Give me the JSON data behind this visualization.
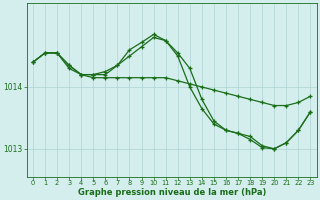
{
  "line1": {
    "x": [
      0,
      1,
      2,
      3,
      4,
      5,
      6,
      7,
      8,
      9,
      10,
      11,
      12,
      13,
      14,
      15,
      16,
      17,
      18,
      19,
      20,
      21,
      22,
      23
    ],
    "y": [
      1014.4,
      1014.55,
      1014.55,
      1014.3,
      1014.2,
      1014.15,
      1014.15,
      1014.15,
      1014.15,
      1014.15,
      1014.15,
      1014.15,
      1014.1,
      1014.05,
      1014.0,
      1013.95,
      1013.9,
      1013.85,
      1013.8,
      1013.75,
      1013.7,
      1013.7,
      1013.75,
      1013.85
    ]
  },
  "line2": {
    "x": [
      0,
      1,
      2,
      3,
      4,
      5,
      6,
      7,
      8,
      9,
      10,
      11,
      12,
      13,
      14,
      15,
      16,
      17,
      18,
      19,
      20,
      21,
      22,
      23
    ],
    "y": [
      1014.4,
      1014.55,
      1014.55,
      1014.35,
      1014.2,
      1014.2,
      1014.25,
      1014.35,
      1014.5,
      1014.65,
      1014.8,
      1014.75,
      1014.55,
      1014.3,
      1013.8,
      1013.45,
      1013.3,
      1013.25,
      1013.2,
      1013.05,
      1013.0,
      1013.1,
      1013.3,
      1013.6
    ]
  },
  "line3": {
    "x": [
      0,
      1,
      2,
      3,
      4,
      5,
      6,
      7,
      8,
      9,
      10,
      11,
      12,
      13,
      14,
      15,
      16,
      17,
      18,
      19,
      20,
      21,
      22,
      23
    ],
    "y": [
      1014.4,
      1014.55,
      1014.55,
      1014.35,
      1014.2,
      1014.2,
      1014.2,
      1014.35,
      1014.6,
      1014.72,
      1014.85,
      1014.75,
      1014.5,
      1014.0,
      1013.65,
      1013.4,
      1013.3,
      1013.25,
      1013.15,
      1013.02,
      1013.0,
      1013.1,
      1013.3,
      1013.6
    ]
  },
  "color": "#1a6e1a",
  "bg_color": "#d4eeee",
  "grid_color": "#aed4d4",
  "ylim": [
    1012.55,
    1015.35
  ],
  "yticks": [
    1013,
    1014
  ],
  "xlim": [
    -0.5,
    23.5
  ],
  "xticks": [
    0,
    1,
    2,
    3,
    4,
    5,
    6,
    7,
    8,
    9,
    10,
    11,
    12,
    13,
    14,
    15,
    16,
    17,
    18,
    19,
    20,
    21,
    22,
    23
  ],
  "xlabel": "Graphe pression niveau de la mer (hPa)",
  "figsize": [
    3.2,
    2.0
  ],
  "dpi": 100
}
